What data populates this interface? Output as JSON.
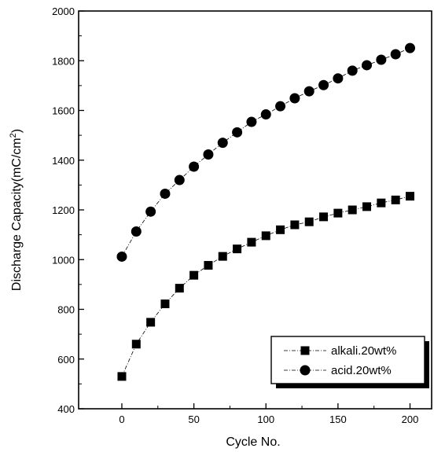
{
  "chart_data": {
    "type": "scatter",
    "xlabel": "Cycle No.",
    "ylabel": "Discharge Capacity(mC/cm",
    "ylabel_superscript": "2",
    "ylabel_close": ")",
    "xlim": [
      -30,
      215
    ],
    "ylim": [
      400,
      2000
    ],
    "x_ticks": [
      0,
      50,
      100,
      150,
      200
    ],
    "y_ticks": [
      400,
      600,
      800,
      1000,
      1200,
      1400,
      1600,
      1800,
      2000
    ],
    "legend_position": "bottom-right",
    "grid": false,
    "x": [
      0,
      10,
      20,
      30,
      40,
      50,
      60,
      70,
      80,
      90,
      100,
      110,
      120,
      130,
      140,
      150,
      160,
      170,
      180,
      190,
      200
    ],
    "series": [
      {
        "name": "alkali.20wt%",
        "marker": "square",
        "line_style": "dash-dot",
        "values": [
          530,
          660,
          748,
          822,
          885,
          937,
          977,
          1013,
          1043,
          1070,
          1096,
          1120,
          1140,
          1152,
          1172,
          1187,
          1200,
          1213,
          1228,
          1240,
          1255
        ]
      },
      {
        "name": "acid.20wt%",
        "marker": "circle",
        "line_style": "dash-dot",
        "values": [
          1012,
          1113,
          1193,
          1265,
          1320,
          1374,
          1423,
          1470,
          1512,
          1554,
          1584,
          1617,
          1649,
          1677,
          1702,
          1729,
          1760,
          1782,
          1804,
          1826,
          1851
        ]
      }
    ]
  }
}
